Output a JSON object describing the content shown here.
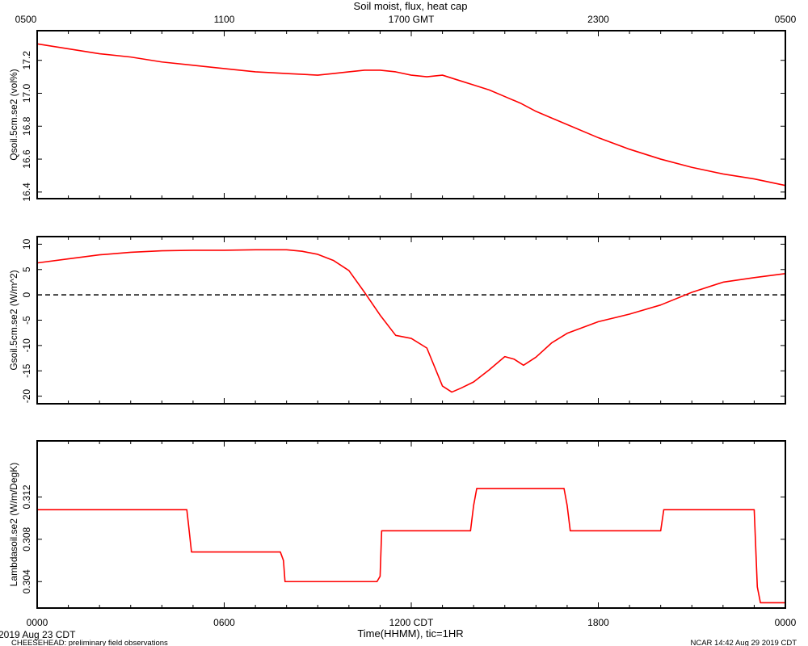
{
  "title": "Soil moist, flux, heat cap",
  "top_axis": {
    "tick_labels": [
      "0500",
      "1100",
      "1700 GMT",
      "2300",
      "0500"
    ]
  },
  "bottom_axis": {
    "tick_labels": [
      "0000",
      "0600",
      "1200 CDT",
      "1800",
      "0000"
    ],
    "label": "Time(HHMM), tic=1HR"
  },
  "footer": {
    "date": "2019 Aug 23 CDT",
    "left": "CHEESEHEAD: preliminary field observations",
    "right": "NCAR 14:42 Aug 29 2019 CDT"
  },
  "colors": {
    "series": "#ff0000",
    "axes": "#000000",
    "zero_line": "#000000",
    "background": "#ffffff"
  },
  "chart_data": [
    {
      "type": "line",
      "ylabel": "Qsoil.5cm.se2 (vol%)",
      "xlim": [
        0,
        24
      ],
      "ylim": [
        16.36,
        17.38
      ],
      "y_ticks": [
        16.4,
        16.6,
        16.8,
        17.0,
        17.2
      ],
      "y_tick_labels": [
        "16.4",
        "16.6",
        "16.8",
        "17.0",
        "17.2"
      ],
      "grid": false,
      "series": [
        {
          "x": [
            0,
            1,
            2,
            3,
            4,
            5,
            6,
            7,
            8,
            9,
            9.5,
            10,
            10.5,
            11,
            11.5,
            12,
            12.5,
            13,
            13.5,
            14,
            14.5,
            15,
            15.5,
            16,
            16.5,
            17,
            18,
            19,
            20,
            21,
            22,
            23,
            24
          ],
          "y": [
            17.3,
            17.27,
            17.24,
            17.22,
            17.19,
            17.17,
            17.15,
            17.13,
            17.12,
            17.11,
            17.12,
            17.13,
            17.14,
            17.14,
            17.13,
            17.11,
            17.1,
            17.11,
            17.08,
            17.05,
            17.02,
            16.98,
            16.94,
            16.89,
            16.85,
            16.81,
            16.73,
            16.66,
            16.6,
            16.55,
            16.51,
            16.48,
            16.44
          ]
        }
      ]
    },
    {
      "type": "line",
      "ylabel": "Gsoil.5cm.se2 (W/m^2)",
      "xlim": [
        0,
        24
      ],
      "ylim": [
        -21.5,
        11.5
      ],
      "y_ticks": [
        -20,
        -15,
        -10,
        -5,
        0,
        5,
        10
      ],
      "y_tick_labels": [
        "-20",
        "-15",
        "-10",
        "-5",
        "0",
        "5",
        "10"
      ],
      "reference_line": 0,
      "grid": false,
      "series": [
        {
          "x": [
            0,
            1,
            2,
            3,
            4,
            5,
            6,
            7,
            8,
            8.5,
            9,
            9.5,
            10,
            10.5,
            11,
            11.5,
            12,
            12.5,
            13,
            13.3,
            13.6,
            14,
            14.5,
            15,
            15.3,
            15.6,
            16,
            16.5,
            17,
            18,
            19,
            20,
            21,
            22,
            23,
            24
          ],
          "y": [
            6.3,
            7.1,
            7.9,
            8.4,
            8.7,
            8.8,
            8.8,
            8.9,
            8.9,
            8.6,
            8.0,
            6.8,
            4.8,
            0.5,
            -4.0,
            -8.0,
            -8.6,
            -10.5,
            -18.0,
            -19.2,
            -18.4,
            -17.2,
            -14.8,
            -12.2,
            -12.7,
            -13.9,
            -12.3,
            -9.5,
            -7.6,
            -5.3,
            -3.8,
            -2.0,
            0.5,
            2.5,
            3.4,
            4.2
          ]
        }
      ]
    },
    {
      "type": "line",
      "ylabel": "Lambdasoil.se2 (W/m/DegK)",
      "xlim": [
        0,
        24
      ],
      "ylim": [
        0.3015,
        0.3173
      ],
      "y_ticks": [
        0.304,
        0.308,
        0.312
      ],
      "y_tick_labels": [
        "0.304",
        "0.308",
        "0.312"
      ],
      "grid": false,
      "series": [
        {
          "x": [
            0,
            4.8,
            4.85,
            4.95,
            7.8,
            7.9,
            7.95,
            10.9,
            11.0,
            11.05,
            13.9,
            14.0,
            14.1,
            16.9,
            17.0,
            17.1,
            20.0,
            20.1,
            23.0,
            23.1,
            23.2,
            24
          ],
          "y": [
            0.3108,
            0.3108,
            0.3095,
            0.3068,
            0.3068,
            0.306,
            0.304,
            0.304,
            0.3045,
            0.3088,
            0.3088,
            0.3112,
            0.3128,
            0.3128,
            0.3112,
            0.3088,
            0.3088,
            0.3108,
            0.3108,
            0.3035,
            0.302,
            0.302
          ]
        }
      ]
    }
  ]
}
